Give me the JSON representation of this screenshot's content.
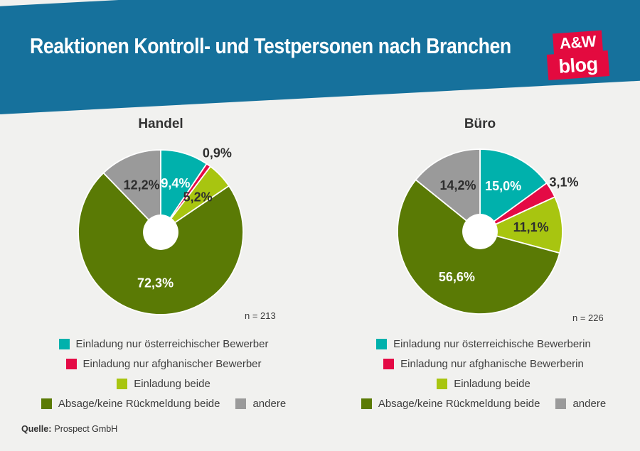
{
  "header": {
    "title": "Reaktionen Kontroll- und Testpersonen nach Branchen",
    "logo": {
      "line1": "A&W",
      "line2": "blog"
    }
  },
  "source": {
    "label": "Quelle:",
    "text": "Prospect GmbH"
  },
  "colors": {
    "banner_blue": "#16719c",
    "logo_red": "#e30a3f",
    "background": "#f1f1ef",
    "teal": "#00b1ac",
    "red": "#e40a45",
    "lime": "#a8c510",
    "olive": "#5a7a05",
    "gray": "#9a9a9a",
    "label_dark": "#2e2e2e",
    "label_light": "#ffffff"
  },
  "chart_data": [
    {
      "type": "pie",
      "title": "Handel",
      "n_label": "n = 213",
      "donut_hole_ratio": 0.215,
      "start_angle_deg": 0,
      "direction": "clockwise",
      "slices": [
        {
          "name": "Einladung nur österreichischer Bewerber",
          "value": 9.4,
          "display": "9,4%",
          "color": "#00b1ac",
          "label_placement": "inside",
          "label_tone": "light"
        },
        {
          "name": "Einladung nur afghanischer Bewerber",
          "value": 0.9,
          "display": "0,9%",
          "color": "#e40a45",
          "label_placement": "outside",
          "label_tone": "dark"
        },
        {
          "name": "Einladung beide",
          "value": 5.2,
          "display": "5,2%",
          "color": "#a8c510",
          "label_placement": "inside",
          "label_tone": "dark"
        },
        {
          "name": "Absage/keine Rückmeldung beide",
          "value": 72.3,
          "display": "72,3%",
          "color": "#5a7a05",
          "label_placement": "inside",
          "label_tone": "light"
        },
        {
          "name": "andere",
          "value": 12.2,
          "display": "12,2%",
          "color": "#9a9a9a",
          "label_placement": "inside",
          "label_tone": "dark"
        }
      ],
      "legend_rows": [
        [
          0
        ],
        [
          1
        ],
        [
          2
        ],
        [
          3,
          4
        ]
      ]
    },
    {
      "type": "pie",
      "title": "Büro",
      "n_label": "n = 226",
      "donut_hole_ratio": 0.215,
      "start_angle_deg": 0,
      "direction": "clockwise",
      "slices": [
        {
          "name": "Einladung nur österreichische Bewerberin",
          "value": 15.0,
          "display": "15,0%",
          "color": "#00b1ac",
          "label_placement": "inside",
          "label_tone": "light"
        },
        {
          "name": "Einladung nur afghanische Bewerberin",
          "value": 3.1,
          "display": "3,1%",
          "color": "#e40a45",
          "label_placement": "outside",
          "label_tone": "dark"
        },
        {
          "name": "Einladung beide",
          "value": 11.1,
          "display": "11,1%",
          "color": "#a8c510",
          "label_placement": "inside",
          "label_tone": "dark"
        },
        {
          "name": "Absage/keine Rückmeldung beide",
          "value": 56.6,
          "display": "56,6%",
          "color": "#5a7a05",
          "label_placement": "inside",
          "label_tone": "light"
        },
        {
          "name": "andere",
          "value": 14.2,
          "display": "14,2%",
          "color": "#9a9a9a",
          "label_placement": "inside",
          "label_tone": "dark"
        }
      ],
      "legend_rows": [
        [
          0
        ],
        [
          1
        ],
        [
          2
        ],
        [
          3,
          4
        ]
      ]
    }
  ]
}
